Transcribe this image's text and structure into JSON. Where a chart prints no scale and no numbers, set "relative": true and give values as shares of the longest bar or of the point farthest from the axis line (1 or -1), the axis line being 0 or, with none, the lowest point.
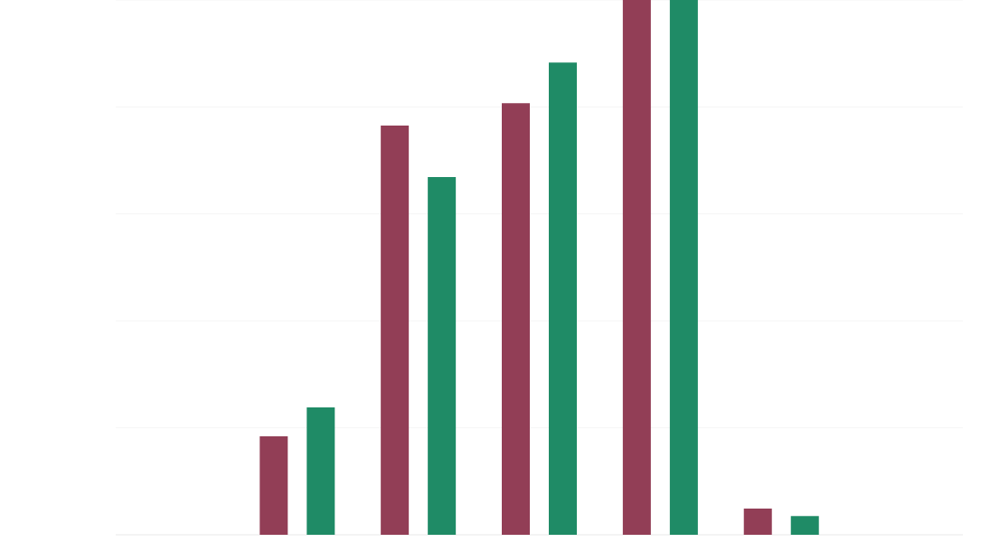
{
  "chart_data": {
    "type": "bar",
    "relative": true,
    "grid": "y",
    "categories": [
      null,
      null,
      null,
      null,
      null
    ],
    "series": [
      {
        "color": "#923e56",
        "values": [
          0.184,
          0.765,
          0.807,
          1,
          0.049
        ]
      },
      {
        "color": "#1f8b66",
        "values": [
          0.238,
          0.669,
          0.883,
          1,
          0.035
        ]
      }
    ]
  }
}
